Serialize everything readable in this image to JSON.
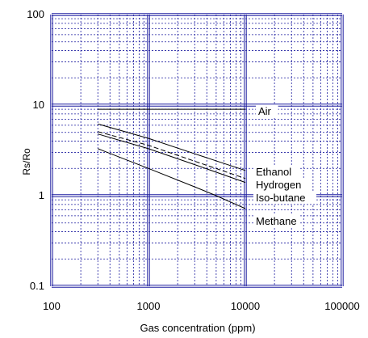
{
  "chart_data": {
    "type": "line",
    "title": "",
    "xlabel": "Gas concentration (ppm)",
    "ylabel": "Rs/Ro",
    "x_scale": "log",
    "y_scale": "log",
    "xlim": [
      100,
      100000
    ],
    "ylim": [
      0.1,
      100
    ],
    "x_ticks": [
      "100",
      "1000",
      "10000",
      "100000"
    ],
    "y_ticks": [
      "0.1",
      "1",
      "10",
      "100"
    ],
    "grid": true,
    "grid_color": "#1f1fa0",
    "line_color": "#000000",
    "series": [
      {
        "name": "Air",
        "style": "solid",
        "x": [
          300,
          10000
        ],
        "y": [
          9,
          9
        ]
      },
      {
        "name": "Ethanol",
        "style": "solid",
        "x": [
          300,
          1000,
          3000,
          10000
        ],
        "y": [
          6.2,
          4.3,
          2.9,
          1.9
        ]
      },
      {
        "name": "Hydrogen",
        "style": "dashed",
        "x": [
          300,
          1000,
          3000,
          10000
        ],
        "y": [
          5.1,
          3.6,
          2.4,
          1.55
        ]
      },
      {
        "name": "Iso-butane",
        "style": "solid",
        "x": [
          300,
          1000,
          3000,
          10000
        ],
        "y": [
          4.8,
          3.3,
          2.2,
          1.4
        ]
      },
      {
        "name": "Methane",
        "style": "solid",
        "x": [
          300,
          1000,
          3000,
          5000,
          10000
        ],
        "y": [
          3.3,
          2.0,
          1.25,
          1.0,
          0.72
        ]
      }
    ]
  }
}
